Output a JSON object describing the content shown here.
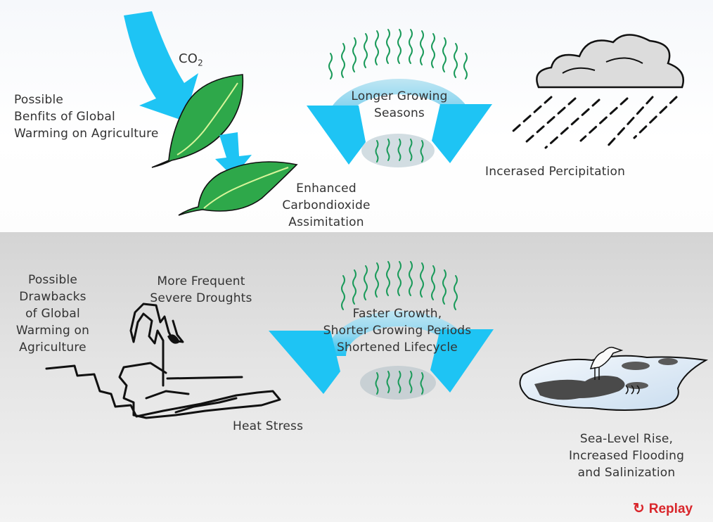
{
  "top": {
    "co2": "CO",
    "co2_sub": "2",
    "benefits_title": "Possible\nBenfits of Global\nWarming on Agriculture",
    "longer_growing": "Longer Growing\nSeasons",
    "precipitation": "Incerased Percipitation",
    "enhanced_co2": "Enhanced\nCarbondioxide\nAssimitation"
  },
  "bottom": {
    "drawbacks_title": "Possible\nDrawbacks\nof Global\nWarming on\nAgriculture",
    "droughts": "More Frequent\nSevere Droughts",
    "faster_growth": "Faster Growth,\nShorter Growing Periods\nShortened Lifecycle",
    "heat_stress": "Heat Stress",
    "sea_level": "Sea-Level Rise,\nIncreased Flooding\nand Salinization"
  },
  "replay_label": "Replay",
  "icons": [
    "co2-arrow-icon",
    "leaf-icon",
    "cycle-arrow-icon",
    "cloud-rain-icon",
    "drought-plant-icon",
    "flood-bird-icon",
    "replay-icon"
  ],
  "colors": {
    "arrow": "#1ec4f4",
    "arrow_light": "#a6dff0",
    "leaf": "#2ea84a",
    "grass": "#1a9a5a",
    "replay": "#d9262b"
  }
}
